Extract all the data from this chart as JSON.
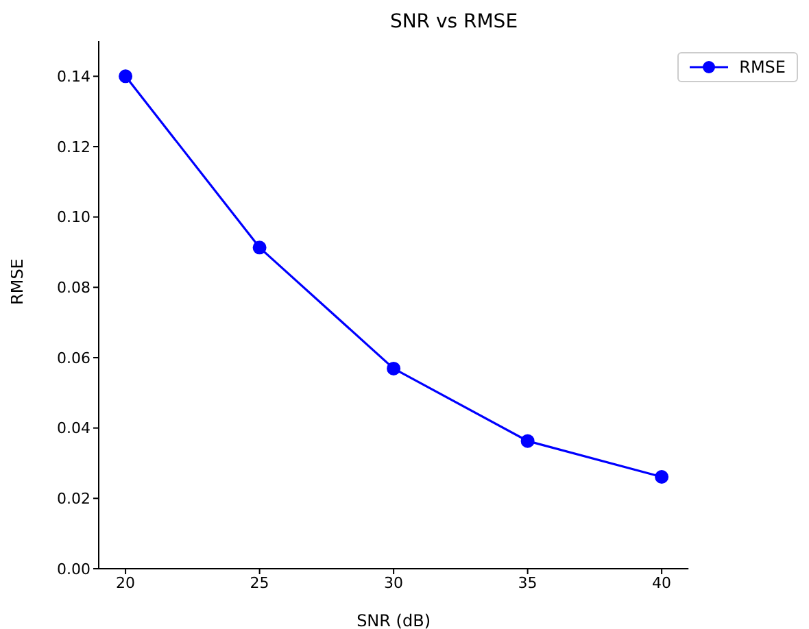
{
  "chart_data": {
    "type": "line",
    "title": "SNR vs RMSE",
    "xlabel": "SNR (dB)",
    "ylabel": "RMSE",
    "x": [
      20,
      25,
      30,
      35,
      40
    ],
    "series": [
      {
        "name": "RMSE",
        "color": "#0000ff",
        "values": [
          0.14,
          0.0913,
          0.0569,
          0.0363,
          0.0261
        ]
      }
    ],
    "xlim": [
      19,
      41
    ],
    "xticks": [
      20,
      25,
      30,
      35,
      40
    ],
    "ylim": [
      0,
      0.15
    ],
    "yticks": [
      {
        "value": 0,
        "label": "0.00"
      },
      0.02,
      0.04,
      0.06,
      0.08,
      {
        "value": 0.1,
        "label": "0.10"
      },
      0.12,
      0.14
    ],
    "legend": "top right",
    "marker": "circle",
    "line_style": "solid",
    "grid": false
  }
}
